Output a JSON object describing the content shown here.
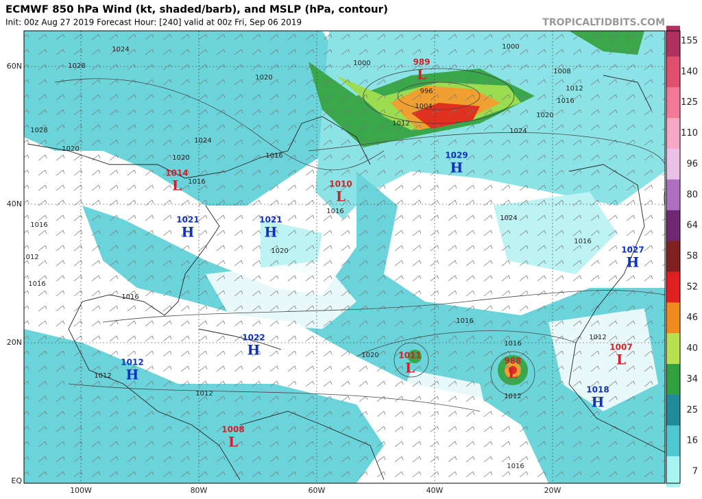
{
  "header": {
    "title": "ECMWF 850 hPa Wind (kt, shaded/barb), and MSLP (hPa, contour)",
    "subtitle": "Init: 00z Aug 27 2019   Forecast Hour: [240]   valid at 00z Fri, Sep 06 2019",
    "site": "TROPICALTIDBITS.COM"
  },
  "map": {
    "lat_labels": [
      "60N",
      "40N",
      "20N",
      "EQ"
    ],
    "lon_labels": [
      "100W",
      "80W",
      "60W",
      "40W",
      "20W"
    ],
    "centers": [
      {
        "type": "L",
        "value": "989"
      },
      {
        "type": "L",
        "value": "1014"
      },
      {
        "type": "L",
        "value": "1010"
      },
      {
        "type": "H",
        "value": "1029"
      },
      {
        "type": "H",
        "value": "1021"
      },
      {
        "type": "H",
        "value": "1021"
      },
      {
        "type": "H",
        "value": "1027"
      },
      {
        "type": "H",
        "value": "1022"
      },
      {
        "type": "H",
        "value": "1012"
      },
      {
        "type": "L",
        "value": "1011"
      },
      {
        "type": "L",
        "value": "988"
      },
      {
        "type": "L",
        "value": "1007"
      },
      {
        "type": "H",
        "value": "1018"
      },
      {
        "type": "L",
        "value": "1008"
      }
    ],
    "contour_labels": [
      "1024",
      "1028",
      "1020",
      "1028",
      "1020",
      "1024",
      "1020",
      "1016",
      "1016",
      "1000",
      "1000",
      "996",
      "1004",
      "1012",
      "1008",
      "1012",
      "1016",
      "1020",
      "1024",
      "1016",
      "1024",
      "1016",
      "1020",
      "1016",
      "1016",
      "1012",
      "1016",
      "1016",
      "1020",
      "1016",
      "1012",
      "1012",
      "1012",
      "1012",
      "1016"
    ]
  },
  "colorbar": {
    "labels": [
      "155",
      "140",
      "125",
      "110",
      "96",
      "80",
      "64",
      "58",
      "52",
      "46",
      "40",
      "34",
      "25",
      "16",
      "7"
    ],
    "colors": [
      "#b03060",
      "#e0506e",
      "#f07a96",
      "#f4a8c4",
      "#e8c0e8",
      "#b070c0",
      "#702870",
      "#802020",
      "#e02020",
      "#f08a20",
      "#b8e050",
      "#30a040",
      "#1f8a9a",
      "#50c8d0",
      "#a8f4f4"
    ]
  }
}
